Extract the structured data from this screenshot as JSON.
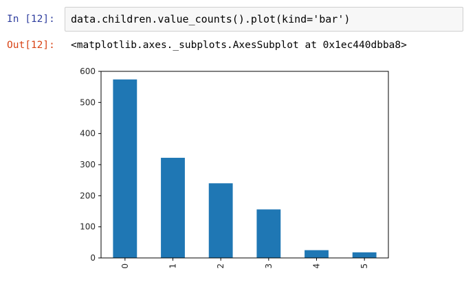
{
  "cell": {
    "in_prompt": "In [12]:",
    "code": "data.children.value_counts().plot(kind='bar')",
    "out_prompt": "Out[12]:",
    "output_text": "<matplotlib.axes._subplots.AxesSubplot at 0x1ec440dbba8>"
  },
  "chart_data": {
    "type": "bar",
    "categories": [
      "0",
      "1",
      "2",
      "3",
      "4",
      "5"
    ],
    "values": [
      574,
      322,
      240,
      156,
      25,
      18
    ],
    "title": "",
    "xlabel": "",
    "ylabel": "",
    "ylim": [
      0,
      600
    ],
    "yticks": [
      "0",
      "100",
      "200",
      "300",
      "400",
      "500",
      "600"
    ],
    "bar_color": "#1f77b4",
    "grid": false
  }
}
